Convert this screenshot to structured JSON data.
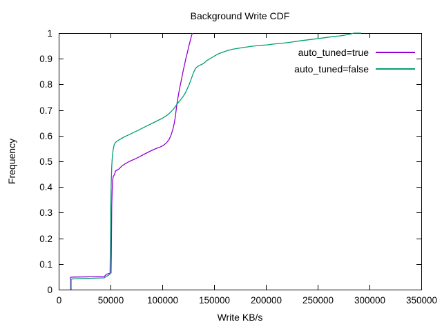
{
  "page": {
    "background": "#ffffff"
  },
  "chart_data": {
    "type": "line",
    "subtype": "cdf",
    "title": "Background Write CDF",
    "xlabel": "Write KB/s",
    "ylabel": "Frequency",
    "xlim": [
      0,
      350000
    ],
    "ylim": [
      0,
      1
    ],
    "grid": false,
    "legend_position": "top-right-inside",
    "frame_color": "#000000",
    "x_ticks": [
      0,
      50000,
      100000,
      150000,
      200000,
      250000,
      300000,
      350000
    ],
    "x_tick_labels": [
      "0",
      "50000",
      "100000",
      "150000",
      "200000",
      "250000",
      "300000",
      "350000"
    ],
    "y_ticks": [
      0,
      0.1,
      0.2,
      0.3,
      0.4,
      0.5,
      0.6,
      0.7,
      0.8,
      0.9,
      1
    ],
    "y_tick_labels": [
      "0",
      "0.1",
      "0.2",
      "0.3",
      "0.4",
      "0.5",
      "0.6",
      "0.7",
      "0.8",
      "0.9",
      "1"
    ],
    "series": [
      {
        "name": "auto_tuned=true",
        "color": "#9400d3",
        "points": [
          [
            11500,
            0
          ],
          [
            11500,
            0.048
          ],
          [
            14000,
            0.049
          ],
          [
            30000,
            0.05
          ],
          [
            44000,
            0.051
          ],
          [
            46000,
            0.06
          ],
          [
            48000,
            0.062
          ],
          [
            50500,
            0.065
          ],
          [
            50800,
            0.14
          ],
          [
            51000,
            0.24
          ],
          [
            51200,
            0.33
          ],
          [
            51600,
            0.385
          ],
          [
            52000,
            0.42
          ],
          [
            52500,
            0.44
          ],
          [
            53000,
            0.443
          ],
          [
            54000,
            0.45
          ],
          [
            54700,
            0.462
          ],
          [
            56000,
            0.465
          ],
          [
            58000,
            0.47
          ],
          [
            61000,
            0.482
          ],
          [
            64000,
            0.49
          ],
          [
            67000,
            0.497
          ],
          [
            70000,
            0.503
          ],
          [
            74000,
            0.51
          ],
          [
            78000,
            0.518
          ],
          [
            82000,
            0.527
          ],
          [
            86000,
            0.535
          ],
          [
            90000,
            0.543
          ],
          [
            94000,
            0.55
          ],
          [
            98000,
            0.556
          ],
          [
            101000,
            0.562
          ],
          [
            104000,
            0.572
          ],
          [
            106500,
            0.585
          ],
          [
            108500,
            0.603
          ],
          [
            110000,
            0.622
          ],
          [
            111500,
            0.648
          ],
          [
            112700,
            0.678
          ],
          [
            113700,
            0.71
          ],
          [
            114500,
            0.735
          ],
          [
            115500,
            0.758
          ],
          [
            117000,
            0.79
          ],
          [
            118500,
            0.82
          ],
          [
            120000,
            0.85
          ],
          [
            121500,
            0.878
          ],
          [
            123000,
            0.905
          ],
          [
            124500,
            0.93
          ],
          [
            126000,
            0.955
          ],
          [
            127300,
            0.975
          ],
          [
            128300,
            0.99
          ],
          [
            129000,
            1.0
          ]
        ]
      },
      {
        "name": "auto_tuned=false",
        "color": "#009e73",
        "points": [
          [
            12000,
            0
          ],
          [
            12000,
            0.04
          ],
          [
            14000,
            0.042
          ],
          [
            30000,
            0.044
          ],
          [
            44000,
            0.046
          ],
          [
            46000,
            0.052
          ],
          [
            48000,
            0.056
          ],
          [
            49500,
            0.06
          ],
          [
            49800,
            0.14
          ],
          [
            50000,
            0.24
          ],
          [
            50300,
            0.33
          ],
          [
            50700,
            0.42
          ],
          [
            51200,
            0.48
          ],
          [
            51800,
            0.52
          ],
          [
            52500,
            0.545
          ],
          [
            53500,
            0.565
          ],
          [
            54500,
            0.572
          ],
          [
            56000,
            0.578
          ],
          [
            58000,
            0.583
          ],
          [
            61000,
            0.59
          ],
          [
            64000,
            0.597
          ],
          [
            68000,
            0.604
          ],
          [
            72000,
            0.612
          ],
          [
            76000,
            0.62
          ],
          [
            80000,
            0.628
          ],
          [
            84000,
            0.636
          ],
          [
            88000,
            0.644
          ],
          [
            92000,
            0.652
          ],
          [
            96000,
            0.66
          ],
          [
            100000,
            0.668
          ],
          [
            104000,
            0.678
          ],
          [
            107000,
            0.688
          ],
          [
            110000,
            0.7
          ],
          [
            112000,
            0.71
          ],
          [
            114000,
            0.722
          ],
          [
            116000,
            0.732
          ],
          [
            118000,
            0.742
          ],
          [
            120000,
            0.752
          ],
          [
            122000,
            0.765
          ],
          [
            124000,
            0.782
          ],
          [
            126000,
            0.8
          ],
          [
            128000,
            0.822
          ],
          [
            130000,
            0.845
          ],
          [
            132000,
            0.862
          ],
          [
            134000,
            0.87
          ],
          [
            137000,
            0.876
          ],
          [
            140000,
            0.882
          ],
          [
            143000,
            0.893
          ],
          [
            146000,
            0.9
          ],
          [
            150000,
            0.91
          ],
          [
            154000,
            0.919
          ],
          [
            158000,
            0.925
          ],
          [
            163000,
            0.932
          ],
          [
            168000,
            0.937
          ],
          [
            174000,
            0.941
          ],
          [
            180000,
            0.945
          ],
          [
            187000,
            0.949
          ],
          [
            194000,
            0.952
          ],
          [
            201000,
            0.954
          ],
          [
            209000,
            0.958
          ],
          [
            217000,
            0.961
          ],
          [
            225000,
            0.965
          ],
          [
            233000,
            0.97
          ],
          [
            241000,
            0.974
          ],
          [
            249000,
            0.978
          ],
          [
            257000,
            0.982
          ],
          [
            264000,
            0.986
          ],
          [
            271000,
            0.989
          ],
          [
            276000,
            0.992
          ],
          [
            280000,
            0.995
          ],
          [
            283000,
            0.998
          ],
          [
            285000,
            1.0
          ],
          [
            292000,
            1.0
          ]
        ]
      }
    ]
  }
}
